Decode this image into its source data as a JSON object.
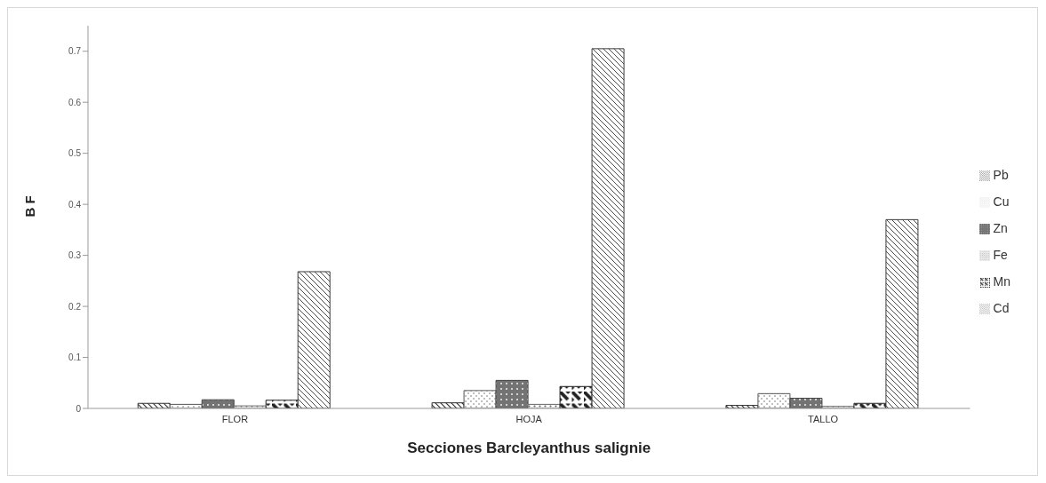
{
  "chart_data": {
    "type": "bar",
    "xlabel": "Secciones Barcleyanthus salignie",
    "ylabel": "B F",
    "categories": [
      "FLOR",
      "HOJA",
      "TALLO"
    ],
    "series": [
      {
        "name": "Pb",
        "color": "#333333",
        "values": [
          0.01,
          0.011,
          0.006
        ]
      },
      {
        "name": "Cu",
        "color": "#555555",
        "values": [
          0.008,
          0.035,
          0.029
        ]
      },
      {
        "name": "Zn",
        "color": "#444444",
        "values": [
          0.017,
          0.055,
          0.02
        ]
      },
      {
        "name": "Fe",
        "color": "#666666",
        "values": [
          0.005,
          0.008,
          0.004
        ]
      },
      {
        "name": "Mn",
        "color": "#222222",
        "values": [
          0.016,
          0.043,
          0.01
        ]
      },
      {
        "name": "Cd",
        "color": "#3a3a3a",
        "values": [
          0.268,
          0.705,
          0.37
        ]
      }
    ],
    "ylim": [
      0,
      0.75
    ],
    "yticks": [
      0,
      0.1,
      0.2,
      0.3,
      0.4,
      0.5,
      0.6,
      0.7
    ],
    "grid": false,
    "legend": "right"
  }
}
